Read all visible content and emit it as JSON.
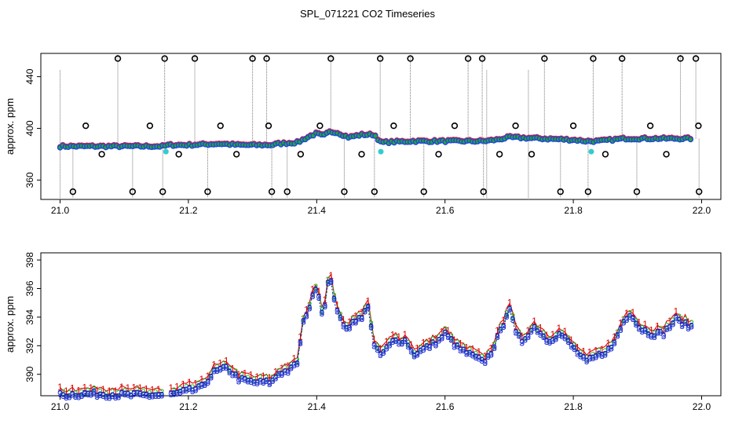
{
  "figure": {
    "title": "SPL_071221  CO2 Timeseries"
  },
  "chart_data": [
    {
      "type": "scatter",
      "panel": "top",
      "ylabel": "approx. ppm",
      "xlim": [
        20.97,
        22.03
      ],
      "ylim": [
        345,
        458
      ],
      "x_ticks": [
        "21.0",
        "21.2",
        "21.4",
        "21.6",
        "21.8",
        "22.0"
      ],
      "y_ticks": [
        "360",
        "400",
        "440"
      ],
      "colors": {
        "spike": "#000000",
        "trace": "#2244dd",
        "fill": "#22aa33",
        "drop": "#33cccc",
        "stem": "#777777"
      },
      "baseline": [
        [
          21.0,
          386
        ],
        [
          21.05,
          386
        ],
        [
          21.1,
          386
        ],
        [
          21.15,
          386
        ],
        [
          21.16,
          386
        ],
        [
          21.17,
          387
        ],
        [
          21.2,
          387
        ],
        [
          21.25,
          388
        ],
        [
          21.28,
          387
        ],
        [
          21.33,
          387
        ],
        [
          21.34,
          388
        ],
        [
          21.37,
          389
        ],
        [
          21.39,
          394
        ],
        [
          21.4,
          396
        ],
        [
          21.41,
          394
        ],
        [
          21.42,
          397
        ],
        [
          21.43,
          397
        ],
        [
          21.45,
          393
        ],
        [
          21.47,
          395
        ],
        [
          21.49,
          395
        ],
        [
          21.5,
          389
        ],
        [
          21.55,
          390
        ],
        [
          21.6,
          390
        ],
        [
          21.65,
          390
        ],
        [
          21.66,
          390
        ],
        [
          21.68,
          391
        ],
        [
          21.7,
          393
        ],
        [
          21.75,
          392
        ],
        [
          21.8,
          391
        ],
        [
          21.82,
          390
        ],
        [
          21.84,
          390
        ],
        [
          21.88,
          392
        ],
        [
          21.9,
          392
        ],
        [
          21.95,
          392
        ],
        [
          21.98,
          392
        ]
      ],
      "outliers_high": [
        21.09,
        21.163,
        21.21,
        21.3,
        21.322,
        21.422,
        21.499,
        21.546,
        21.636,
        21.658,
        21.755,
        21.831,
        21.876,
        21.967,
        21.991
      ],
      "outliers_low": [
        21.02,
        21.113,
        21.16,
        21.23,
        21.33,
        21.354,
        21.443,
        21.49,
        21.567,
        21.66,
        21.78,
        21.823,
        21.899,
        21.996
      ],
      "outliers_mid": [
        21.04,
        21.065,
        21.14,
        21.185,
        21.25,
        21.275,
        21.325,
        21.375,
        21.405,
        21.47,
        21.52,
        21.59,
        21.615,
        21.685,
        21.71,
        21.735,
        21.8,
        21.85,
        21.92,
        21.945,
        21.995
      ],
      "drops": [
        [
          21.165,
          382
        ],
        [
          21.5,
          382
        ],
        [
          21.828,
          382
        ]
      ]
    },
    {
      "type": "line",
      "panel": "bottom",
      "ylabel": "approx. ppm",
      "xlim": [
        20.97,
        22.03
      ],
      "ylim": [
        388.5,
        398.5
      ],
      "x_ticks": [
        "21.0",
        "21.2",
        "21.4",
        "21.6",
        "21.8",
        "22.0"
      ],
      "y_ticks": [
        "390",
        "392",
        "394",
        "396",
        "398"
      ],
      "series": [
        {
          "marker": "1",
          "color": "#dd0000"
        },
        {
          "marker": "2",
          "color": "#22bb22"
        },
        {
          "marker": "3",
          "color": "#1122cc"
        }
      ],
      "x": [
        21.0,
        21.05,
        21.1,
        21.16,
        21.17,
        21.2,
        21.22,
        21.24,
        21.26,
        21.28,
        21.3,
        21.33,
        21.34,
        21.36,
        21.37,
        21.38,
        21.39,
        21.4,
        21.41,
        21.415,
        21.42,
        21.43,
        21.44,
        21.45,
        21.46,
        21.47,
        21.48,
        21.49,
        21.5,
        21.52,
        21.54,
        21.55,
        21.57,
        21.59,
        21.6,
        21.62,
        21.64,
        21.66,
        21.67,
        21.69,
        21.7,
        21.71,
        21.72,
        21.74,
        21.76,
        21.78,
        21.8,
        21.82,
        21.84,
        21.86,
        21.88,
        21.89,
        21.9,
        21.92,
        21.94,
        21.96,
        21.98
      ],
      "y": [
        388.7,
        388.8,
        388.7,
        388.7,
        388.7,
        389.0,
        389.2,
        390.3,
        390.6,
        389.8,
        389.6,
        389.6,
        390.2,
        390.5,
        391.0,
        394.0,
        395.0,
        396.5,
        394.0,
        396.0,
        397.0,
        395.0,
        393.5,
        393.5,
        394.0,
        394.0,
        395.0,
        392.0,
        391.5,
        392.5,
        392.5,
        391.5,
        392.0,
        392.5,
        393.0,
        392.0,
        391.5,
        391.0,
        391.5,
        393.5,
        395.0,
        393.0,
        392.5,
        393.5,
        392.5,
        393.0,
        392.0,
        391.0,
        391.5,
        392.0,
        394.0,
        394.5,
        393.5,
        393.0,
        393.0,
        394.0,
        393.5
      ]
    }
  ]
}
